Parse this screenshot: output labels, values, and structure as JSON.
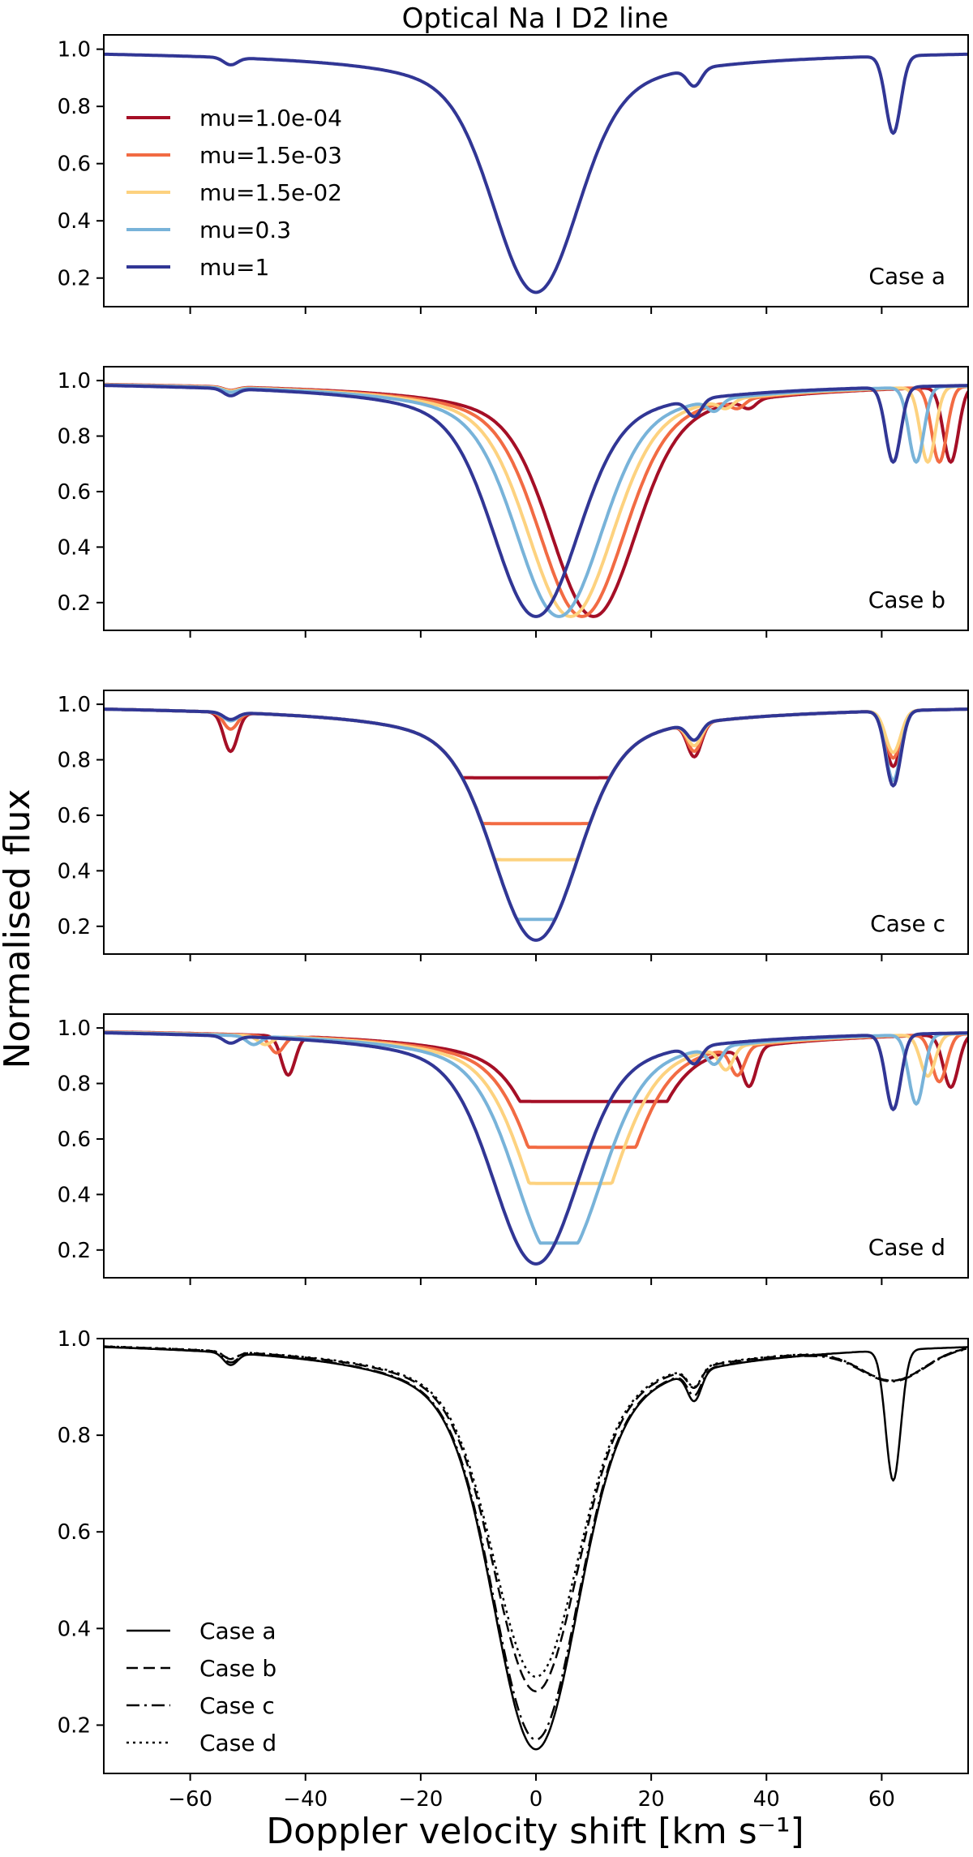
{
  "figure": {
    "title": "Optical Na I D2 line",
    "xlabel": "Doppler velocity shift [km s⁻¹]",
    "ylabel": "Normalised flux"
  },
  "chart_data": [
    {
      "type": "line",
      "panel": "a",
      "case_label": "Case a",
      "xlim": [
        -75,
        75
      ],
      "ylim": [
        0.1,
        1.05
      ],
      "yticks": [
        0.2,
        0.4,
        0.6,
        0.8,
        1.0
      ],
      "xticks": [
        -60,
        -40,
        -20,
        0,
        20,
        40,
        60
      ],
      "show_x_tick_labels": false,
      "legend": {
        "position": "upper-left",
        "entries": [
          {
            "label": "mu=1.0e-04",
            "color": "#a50f26"
          },
          {
            "label": "mu=1.5e-03",
            "color": "#f26b43"
          },
          {
            "label": "mu=1.5e-02",
            "color": "#fdd27f"
          },
          {
            "label": "mu=0.3",
            "color": "#78b3d9"
          },
          {
            "label": "mu=1",
            "color": "#313695"
          }
        ]
      },
      "series": [
        {
          "color": "#313695",
          "style": "solid",
          "width": 4,
          "model": {
            "depth": 0.83,
            "center": 0,
            "flat": 0,
            "lines": [
              [
                -53,
                0.025,
                1.2
              ],
              [
                27.5,
                0.06,
                1.2
              ],
              [
                62,
                0.27,
                1.3
              ]
            ],
            "blend": 0.6
          }
        }
      ]
    },
    {
      "type": "line",
      "panel": "b",
      "case_label": "Case b",
      "xlim": [
        -75,
        75
      ],
      "ylim": [
        0.1,
        1.05
      ],
      "yticks": [
        0.2,
        0.4,
        0.6,
        0.8,
        1.0
      ],
      "xticks": [
        -60,
        -40,
        -20,
        0,
        20,
        40,
        60
      ],
      "show_x_tick_labels": false,
      "series": [
        {
          "name": "mu=1.0e-04",
          "color": "#a50f26",
          "style": "solid",
          "width": 4,
          "model": {
            "depth": 0.83,
            "center": 10,
            "flat": 0,
            "lines": [
              [
                -53,
                0.012,
                1.2
              ],
              [
                37,
                0.03,
                1.2
              ],
              [
                72,
                0.27,
                1.3
              ]
            ],
            "blend": 0.2
          }
        },
        {
          "name": "mu=1.5e-03",
          "color": "#f26b43",
          "style": "solid",
          "width": 4,
          "model": {
            "depth": 0.83,
            "center": 8,
            "flat": 0,
            "lines": [
              [
                -53,
                0.012,
                1.2
              ],
              [
                35,
                0.03,
                1.2
              ],
              [
                70,
                0.27,
                1.3
              ]
            ],
            "blend": 0.3
          }
        },
        {
          "name": "mu=1.5e-02",
          "color": "#fdd27f",
          "style": "solid",
          "width": 4,
          "model": {
            "depth": 0.83,
            "center": 6,
            "flat": 0,
            "lines": [
              [
                -53,
                0.012,
                1.2
              ],
              [
                33,
                0.03,
                1.2
              ],
              [
                68,
                0.27,
                1.3
              ]
            ],
            "blend": 0.4
          }
        },
        {
          "name": "mu=0.3",
          "color": "#78b3d9",
          "style": "solid",
          "width": 4,
          "model": {
            "depth": 0.83,
            "center": 4,
            "flat": 0,
            "lines": [
              [
                -53,
                0.015,
                1.2
              ],
              [
                31,
                0.04,
                1.2
              ],
              [
                66,
                0.27,
                1.3
              ]
            ],
            "blend": 0.5
          }
        },
        {
          "name": "mu=1",
          "color": "#313695",
          "style": "solid",
          "width": 4,
          "model": {
            "depth": 0.83,
            "center": 0,
            "flat": 0,
            "lines": [
              [
                -53,
                0.025,
                1.2
              ],
              [
                27.5,
                0.06,
                1.2
              ],
              [
                62,
                0.27,
                1.3
              ]
            ],
            "blend": 0.6
          }
        }
      ]
    },
    {
      "type": "line",
      "panel": "c",
      "case_label": "Case c",
      "xlim": [
        -75,
        75
      ],
      "ylim": [
        0.1,
        1.05
      ],
      "yticks": [
        0.2,
        0.4,
        0.6,
        0.8,
        1.0
      ],
      "xticks": [
        -60,
        -40,
        -20,
        0,
        20,
        40,
        60
      ],
      "show_x_tick_labels": false,
      "series": [
        {
          "name": "mu=1.0e-04",
          "color": "#a50f26",
          "style": "solid",
          "width": 4,
          "model": {
            "depth": 0.83,
            "center": 0,
            "flat": 0.755,
            "lines": [
              [
                -53,
                0.14,
                1.2
              ],
              [
                27.5,
                0.12,
                1.2
              ],
              [
                62,
                0.2,
                1.3
              ]
            ],
            "blend": 0.1
          }
        },
        {
          "name": "mu=1.5e-03",
          "color": "#f26b43",
          "style": "solid",
          "width": 4,
          "model": {
            "depth": 0.83,
            "center": 0,
            "flat": 0.59,
            "lines": [
              [
                -53,
                0.06,
                1.2
              ],
              [
                27.5,
                0.1,
                1.2
              ],
              [
                62,
                0.17,
                1.3
              ]
            ],
            "blend": 0.1
          }
        },
        {
          "name": "mu=1.5e-02",
          "color": "#fdd27f",
          "style": "solid",
          "width": 4,
          "model": {
            "depth": 0.83,
            "center": 0,
            "flat": 0.46,
            "lines": [
              [
                -53,
                0.03,
                1.2
              ],
              [
                27.5,
                0.08,
                1.2
              ],
              [
                62,
                0.15,
                1.3
              ]
            ],
            "blend": 0.1
          }
        },
        {
          "name": "mu=0.3",
          "color": "#78b3d9",
          "style": "solid",
          "width": 4,
          "model": {
            "depth": 0.83,
            "center": 0,
            "flat": 0.245,
            "lines": [
              [
                -53,
                0.03,
                1.2
              ],
              [
                27.5,
                0.06,
                1.2
              ],
              [
                62,
                0.25,
                1.3
              ]
            ],
            "blend": 0.5
          }
        },
        {
          "name": "mu=1",
          "color": "#313695",
          "style": "solid",
          "width": 4,
          "model": {
            "depth": 0.83,
            "center": 0,
            "flat": 0,
            "lines": [
              [
                -53,
                0.025,
                1.2
              ],
              [
                27.5,
                0.06,
                1.2
              ],
              [
                62,
                0.27,
                1.3
              ]
            ],
            "blend": 0.6
          }
        }
      ]
    },
    {
      "type": "line",
      "panel": "d",
      "case_label": "Case d",
      "xlim": [
        -75,
        75
      ],
      "ylim": [
        0.1,
        1.05
      ],
      "yticks": [
        0.2,
        0.4,
        0.6,
        0.8,
        1.0
      ],
      "xticks": [
        -60,
        -40,
        -20,
        0,
        20,
        40,
        60
      ],
      "show_x_tick_labels": false,
      "series": [
        {
          "name": "mu=1.0e-04",
          "color": "#a50f26",
          "style": "solid",
          "width": 4,
          "model": {
            "depth": 0.83,
            "center": 10,
            "flat": 0.755,
            "lines": [
              [
                -43,
                0.14,
                1.2
              ],
              [
                37,
                0.14,
                1.2
              ],
              [
                72,
                0.19,
                1.3
              ]
            ],
            "blend": 0.1
          }
        },
        {
          "name": "mu=1.5e-03",
          "color": "#f26b43",
          "style": "solid",
          "width": 4,
          "model": {
            "depth": 0.83,
            "center": 8,
            "flat": 0.59,
            "lines": [
              [
                -45,
                0.06,
                1.2
              ],
              [
                35,
                0.1,
                1.2
              ],
              [
                70,
                0.17,
                1.3
              ]
            ],
            "blend": 0.1
          }
        },
        {
          "name": "mu=1.5e-02",
          "color": "#fdd27f",
          "style": "solid",
          "width": 4,
          "model": {
            "depth": 0.83,
            "center": 6,
            "flat": 0.46,
            "lines": [
              [
                -47,
                0.03,
                1.2
              ],
              [
                33,
                0.08,
                1.2
              ],
              [
                68,
                0.15,
                1.3
              ]
            ],
            "blend": 0.1
          }
        },
        {
          "name": "mu=0.3",
          "color": "#78b3d9",
          "style": "solid",
          "width": 4,
          "model": {
            "depth": 0.83,
            "center": 4,
            "flat": 0.245,
            "lines": [
              [
                -49,
                0.03,
                1.2
              ],
              [
                31,
                0.06,
                1.2
              ],
              [
                66,
                0.25,
                1.3
              ]
            ],
            "blend": 0.5
          }
        },
        {
          "name": "mu=1",
          "color": "#313695",
          "style": "solid",
          "width": 4,
          "model": {
            "depth": 0.83,
            "center": 0,
            "flat": 0,
            "lines": [
              [
                -53,
                0.025,
                1.2
              ],
              [
                27.5,
                0.06,
                1.2
              ],
              [
                62,
                0.27,
                1.3
              ]
            ],
            "blend": 0.6
          }
        }
      ]
    },
    {
      "type": "line",
      "panel": "summary",
      "case_label": "",
      "xlim": [
        -75,
        75
      ],
      "ylim": [
        0.1,
        1.0
      ],
      "yticks": [
        0.2,
        0.4,
        0.6,
        0.8,
        1.0
      ],
      "xticks": [
        -60,
        -40,
        -20,
        0,
        20,
        40,
        60
      ],
      "show_x_tick_labels": true,
      "legend": {
        "position": "lower-left",
        "entries": [
          {
            "label": "Case a",
            "style": "solid"
          },
          {
            "label": "Case b",
            "style": "dashed"
          },
          {
            "label": "Case c",
            "style": "dashdot"
          },
          {
            "label": "Case d",
            "style": "dotted"
          }
        ]
      },
      "series": [
        {
          "name": "Case a",
          "color": "#000000",
          "style": "solid",
          "width": 2.5,
          "model": {
            "depth": 0.83,
            "center": 0,
            "flat": 0,
            "lines": [
              [
                -53,
                0.025,
                1.2
              ],
              [
                27.5,
                0.06,
                1.2
              ],
              [
                62,
                0.27,
                1.3
              ]
            ],
            "blend": 0.6
          }
        },
        {
          "name": "Case b",
          "color": "#000000",
          "style": "dashed",
          "width": 2.5,
          "model": {
            "depth": 0.71,
            "center": 0,
            "flat": 0,
            "lines": [
              [
                -53,
                0.015,
                1.2
              ],
              [
                27.5,
                0.04,
                1.2
              ],
              [
                62,
                0.065,
                5.5
              ]
            ],
            "blend": 0.5
          }
        },
        {
          "name": "Case c",
          "color": "#000000",
          "style": "dashdot",
          "width": 2.5,
          "model": {
            "depth": 0.81,
            "center": 0,
            "flat": 0,
            "lines": [
              [
                -53,
                0.02,
                1.2
              ],
              [
                27.5,
                0.05,
                1.2
              ],
              [
                62,
                0.065,
                5.5
              ]
            ],
            "blend": 0.55
          }
        },
        {
          "name": "Case d",
          "color": "#000000",
          "style": "dotted",
          "width": 2.5,
          "model": {
            "depth": 0.68,
            "center": 0,
            "flat": 0,
            "lines": [
              [
                -53,
                0.015,
                1.2
              ],
              [
                27.5,
                0.04,
                1.2
              ],
              [
                62,
                0.065,
                5.5
              ]
            ],
            "blend": 0.5
          }
        }
      ]
    }
  ]
}
